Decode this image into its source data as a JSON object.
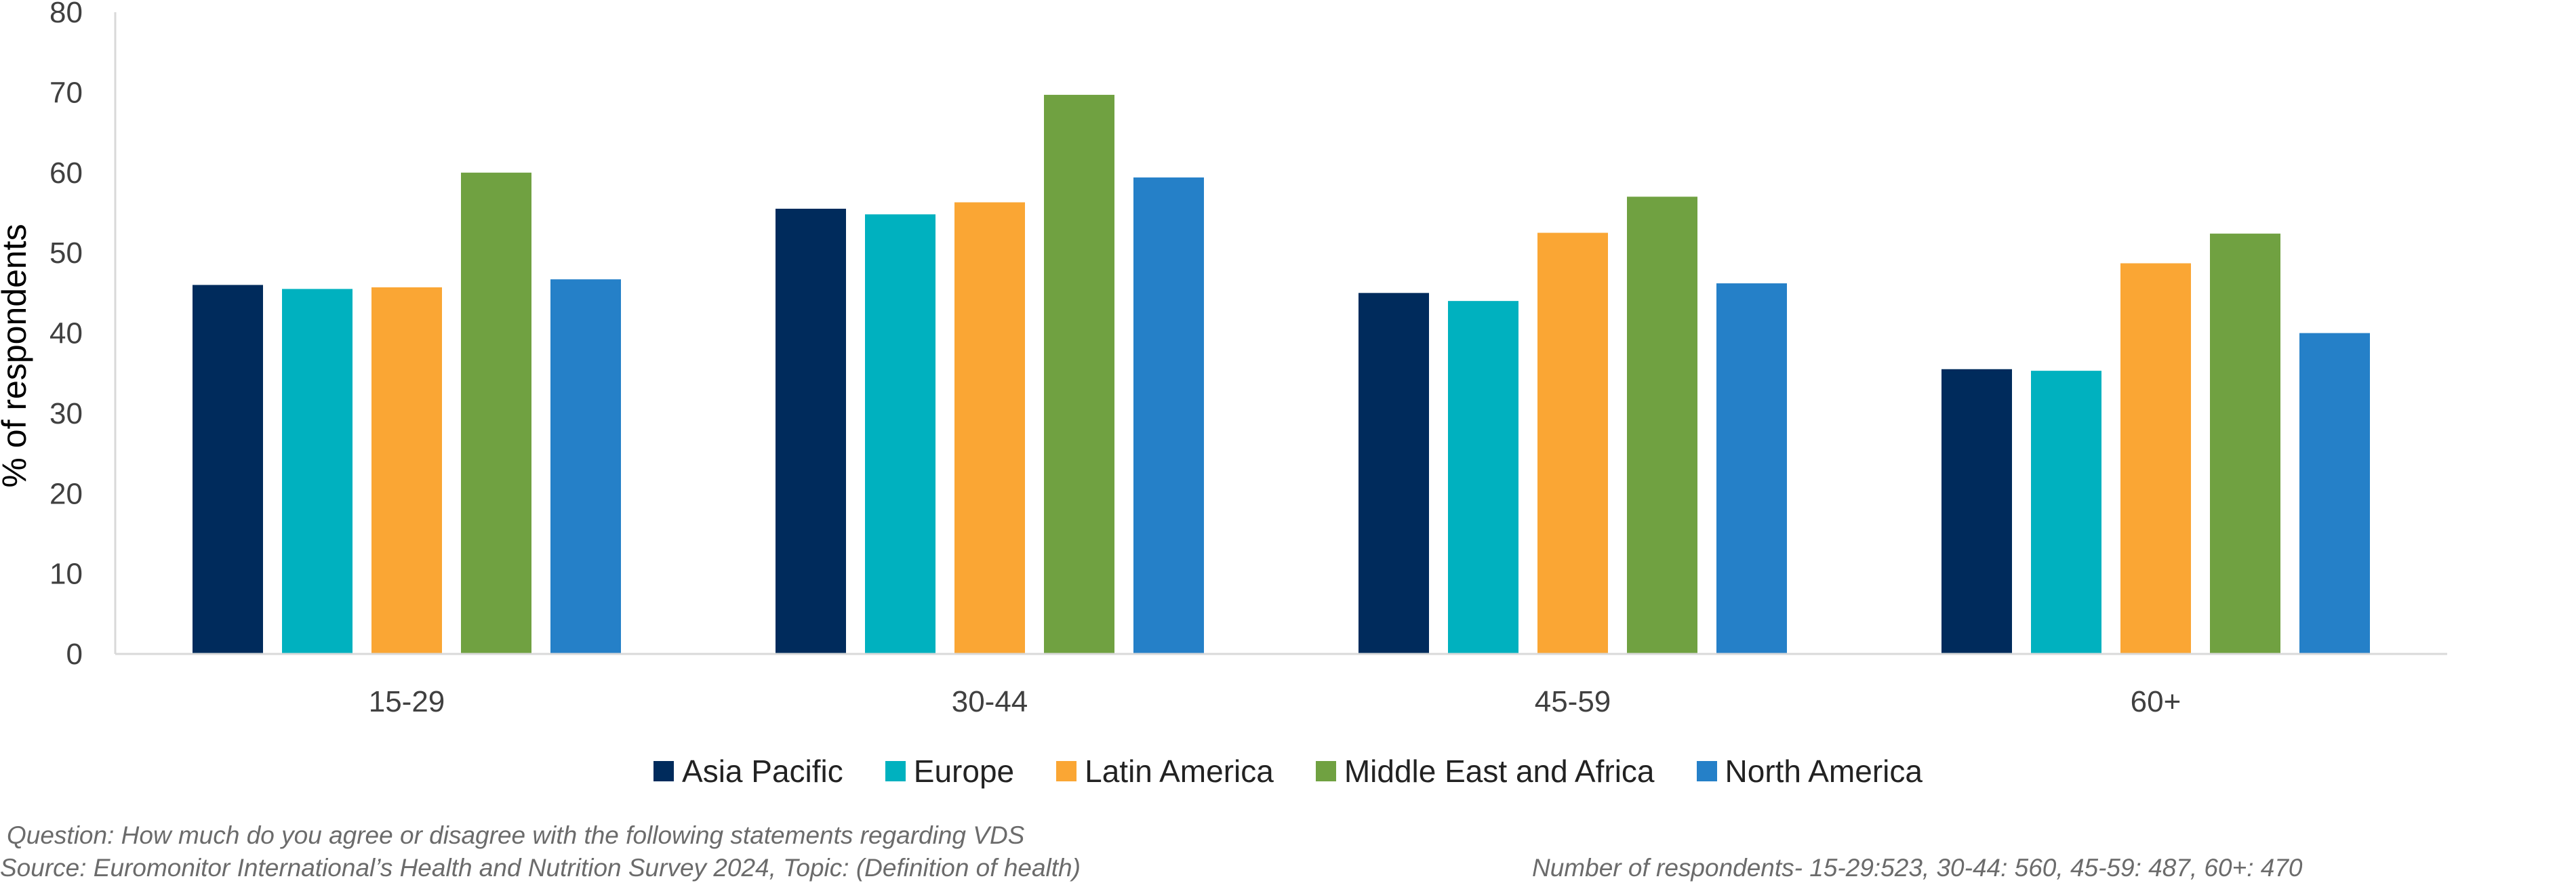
{
  "chart_data": {
    "type": "bar",
    "categories": [
      "15-29",
      "30-44",
      "45-59",
      "60+"
    ],
    "series": [
      {
        "name": "Asia Pacific",
        "color": "#002B5C",
        "values": [
          46,
          55.5,
          45,
          35.5
        ]
      },
      {
        "name": "Europe",
        "color": "#00B1BF",
        "values": [
          45.5,
          54.8,
          44,
          35.3
        ]
      },
      {
        "name": "Latin America",
        "color": "#FAA634",
        "values": [
          45.7,
          56.3,
          52.5,
          48.7
        ]
      },
      {
        "name": "Middle East and Africa",
        "color": "#70A141",
        "values": [
          60,
          69.7,
          57,
          52.4
        ]
      },
      {
        "name": "North America",
        "color": "#2580C8",
        "values": [
          46.7,
          59.4,
          46.2,
          40
        ]
      }
    ],
    "title": "",
    "xlabel": "",
    "ylabel": "% of respondents",
    "ylim": [
      0,
      80
    ],
    "yticks": [
      0,
      10,
      20,
      30,
      40,
      50,
      60,
      70,
      80
    ],
    "grid": false,
    "legend": "bottom"
  },
  "notes": {
    "question": "Question: How much do you agree or disagree with the following statements regarding VDS",
    "source": "Source: Euromonitor International’s Health and Nutrition Survey 2024, Topic: (Definition of health)",
    "respondents": "Number of respondents-  15-29:523, 30-44: 560, 45-59: 487, 60+: 470"
  }
}
